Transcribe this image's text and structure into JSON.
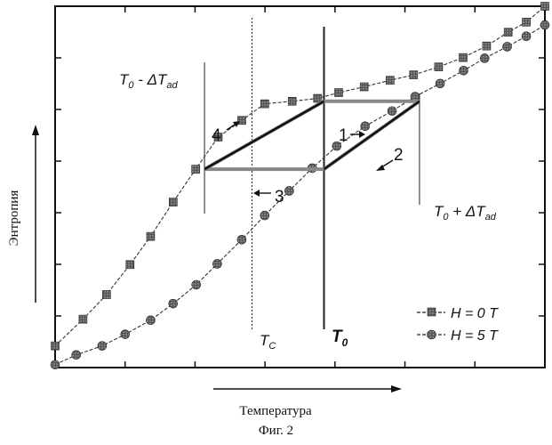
{
  "chart_data": {
    "type": "line",
    "xlabel": "Температура",
    "ylabel": "Энтропия",
    "grid": false,
    "legend_position": "bottom-right",
    "xlim": [
      0,
      1
    ],
    "ylim": [
      0,
      1
    ],
    "series": [
      {
        "name": "H = 0 T",
        "marker": "square",
        "x": [
          0.0,
          0.057,
          0.105,
          0.153,
          0.195,
          0.241,
          0.287,
          0.333,
          0.381,
          0.428,
          0.484,
          0.536,
          0.579,
          0.631,
          0.684,
          0.732,
          0.783,
          0.833,
          0.881,
          0.925,
          0.962,
          1.0
        ],
        "y": [
          0.06,
          0.134,
          0.202,
          0.285,
          0.363,
          0.458,
          0.549,
          0.638,
          0.684,
          0.73,
          0.737,
          0.745,
          0.761,
          0.777,
          0.795,
          0.81,
          0.832,
          0.858,
          0.89,
          0.928,
          0.956,
          1.0
        ]
      },
      {
        "name": "H = 5 T",
        "marker": "circle",
        "x": [
          0.0,
          0.043,
          0.096,
          0.143,
          0.195,
          0.241,
          0.288,
          0.331,
          0.381,
          0.428,
          0.478,
          0.525,
          0.575,
          0.633,
          0.688,
          0.735,
          0.786,
          0.834,
          0.877,
          0.923,
          0.962,
          1.0
        ],
        "y": [
          0.008,
          0.035,
          0.06,
          0.092,
          0.131,
          0.177,
          0.229,
          0.287,
          0.354,
          0.421,
          0.489,
          0.552,
          0.613,
          0.668,
          0.71,
          0.75,
          0.786,
          0.822,
          0.856,
          0.888,
          0.917,
          0.948
        ]
      }
    ],
    "vertical_lines": [
      {
        "x": 0.305,
        "label": "T0 - ΔTad",
        "style": "solid"
      },
      {
        "x": 0.402,
        "label": "Tc",
        "style": "dotted"
      },
      {
        "x": 0.549,
        "label": "T0",
        "style": "solid",
        "bold": true
      },
      {
        "x": 0.744,
        "label": "T0 + ΔTad",
        "style": "solid"
      }
    ],
    "cycle_path": {
      "vertices": [
        [
          0.305,
          0.549
        ],
        [
          0.549,
          0.737
        ],
        [
          0.744,
          0.737
        ],
        [
          0.549,
          0.549
        ],
        [
          0.305,
          0.549
        ]
      ],
      "steps": [
        "1",
        "2",
        "3",
        "4"
      ]
    },
    "legend": [
      "H = 0 T",
      "H = 5 T"
    ]
  },
  "labels": {
    "t0_minus": {
      "base": "T",
      "sub0": "0",
      "mid": " - Δ",
      "base2": "T",
      "sub2": "ad"
    },
    "t0_plus": {
      "base": "T",
      "sub0": "0",
      "mid": " + Δ",
      "base2": "T",
      "sub2": "ad"
    },
    "tc": {
      "base": "T",
      "sub": "C"
    },
    "t0": {
      "base": "T",
      "sub": "0"
    },
    "step1": "1",
    "step2": "2",
    "step3": "3",
    "step4": "4",
    "legend_h0": "H = 0 T",
    "legend_h5": "H = 5 T",
    "caption": "Фиг. 2"
  }
}
